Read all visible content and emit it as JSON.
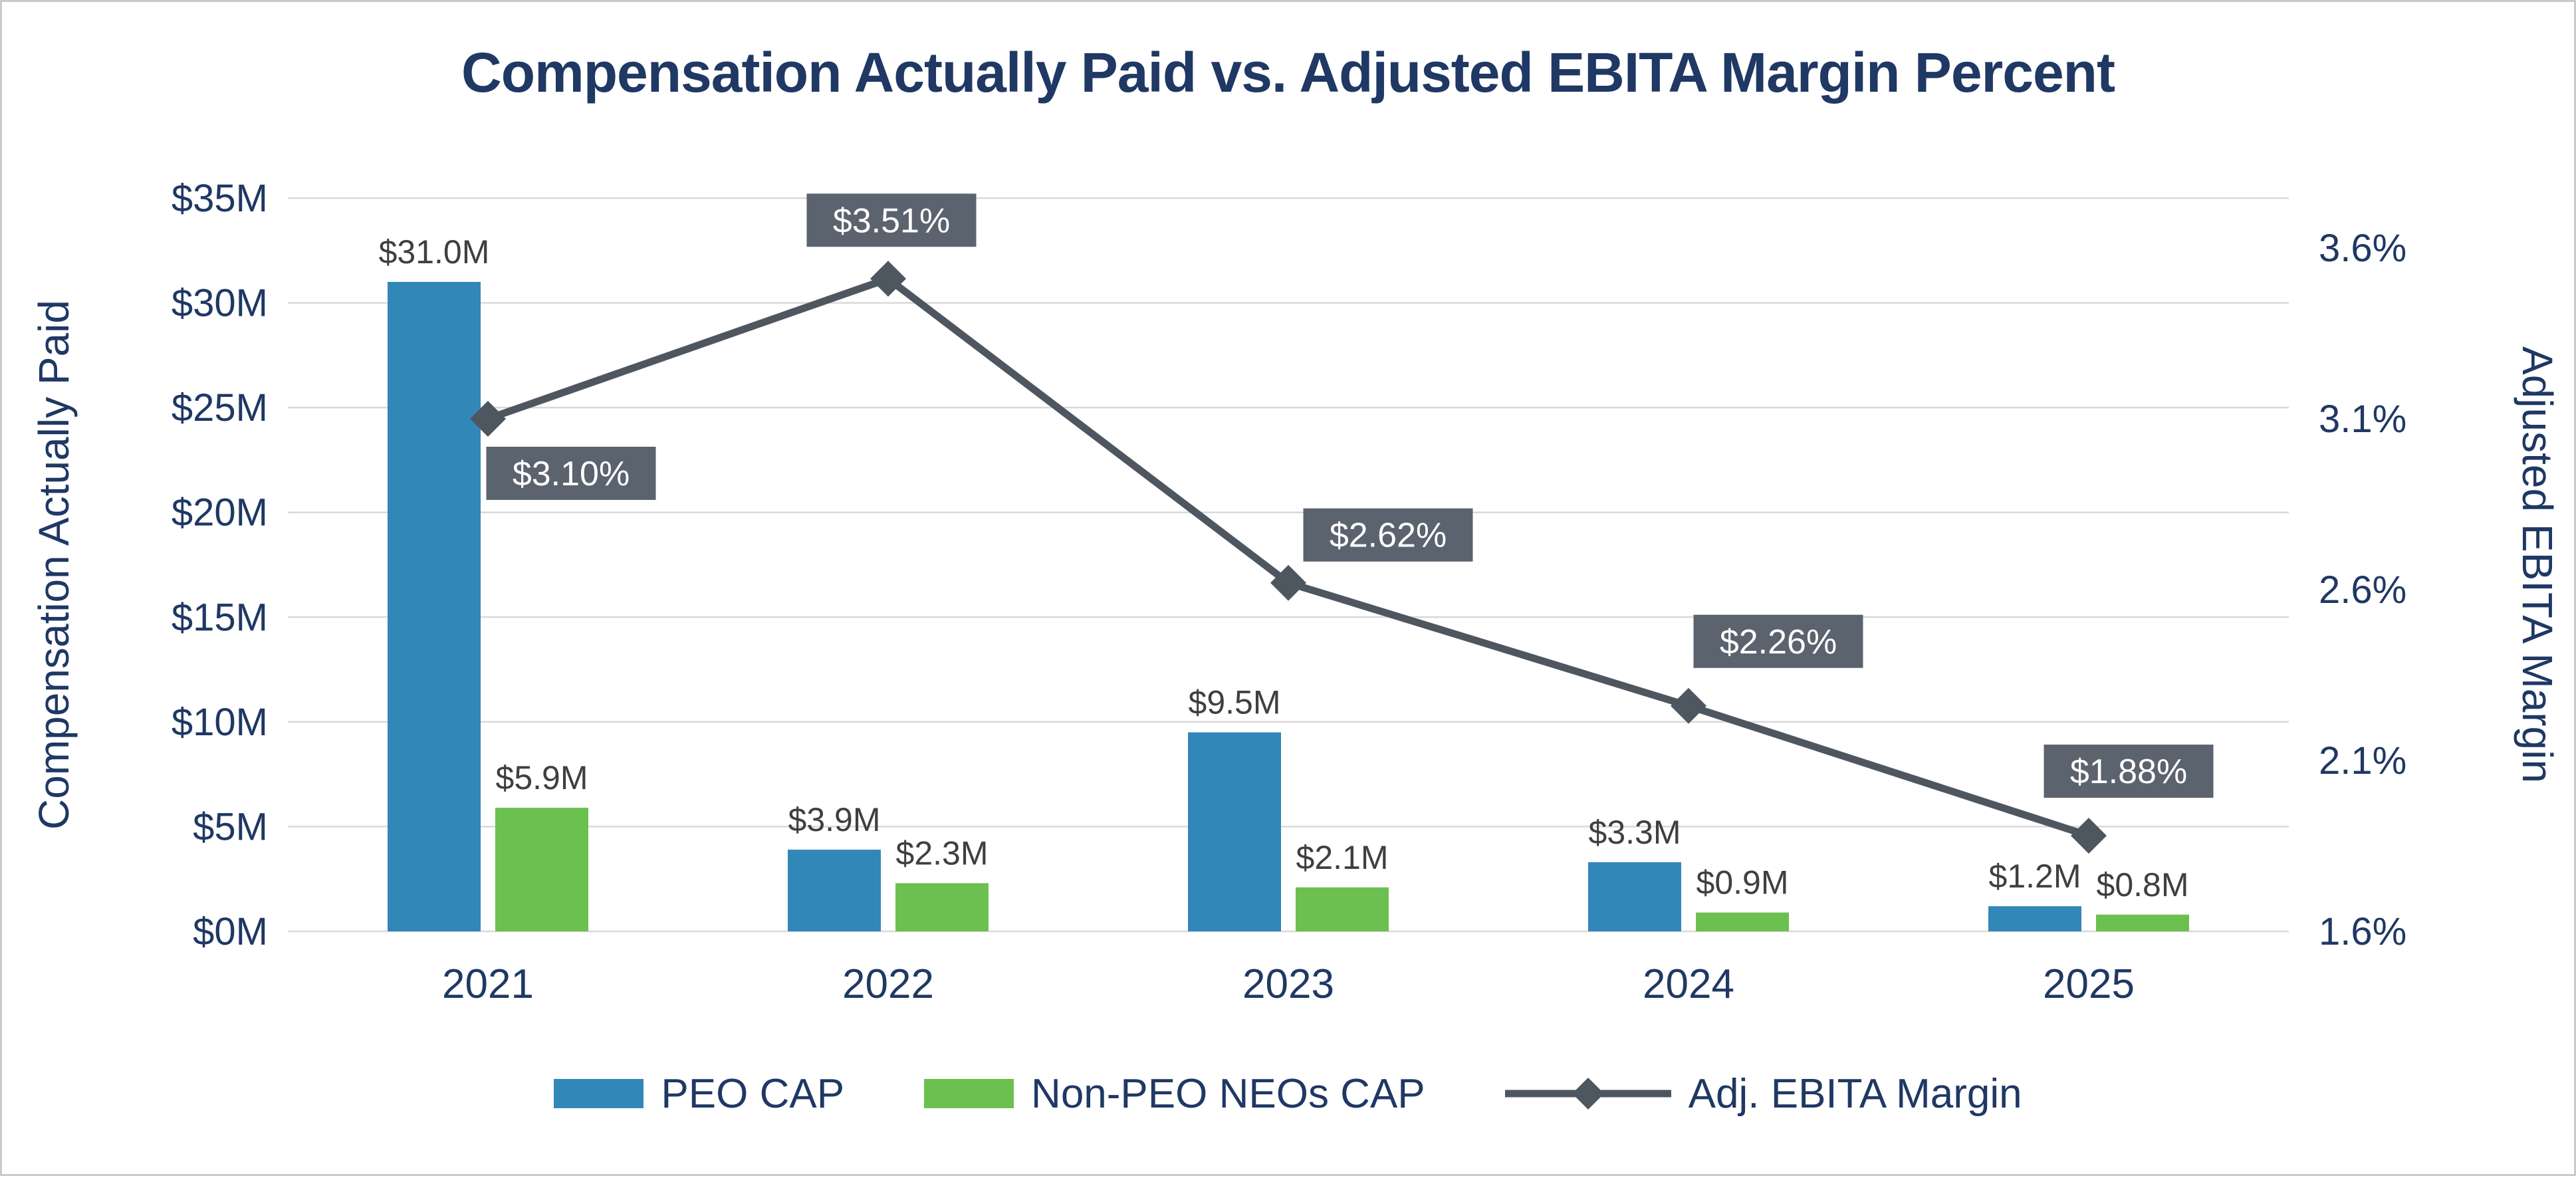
{
  "chart_data": {
    "type": "bar",
    "subtype": "grouped-bar-with-line-combo",
    "title": "Compensation Actually Paid vs. Adjusted EBITA Margin Percent",
    "categories": [
      "2021",
      "2022",
      "2023",
      "2024",
      "2025"
    ],
    "series": [
      {
        "name": "PEO CAP",
        "type": "bar",
        "axis": "left",
        "color": "#3287B9",
        "values": [
          31.0,
          3.9,
          9.5,
          3.3,
          1.2
        ],
        "labels": [
          "$31.0M",
          "$3.9M",
          "$9.5M",
          "$3.3M",
          "$1.2M"
        ]
      },
      {
        "name": "Non-PEO NEOs CAP",
        "type": "bar",
        "axis": "left",
        "color": "#6CC04F",
        "values": [
          5.9,
          2.3,
          2.1,
          0.9,
          0.8
        ],
        "labels": [
          "$5.9M",
          "$2.3M",
          "$2.1M",
          "$0.9M",
          "$0.8M"
        ]
      },
      {
        "name": "Adj. EBITA Margin",
        "type": "line",
        "axis": "right",
        "color": "#4E565F",
        "marker": "diamond",
        "values": [
          3.1,
          3.51,
          2.62,
          2.26,
          1.88
        ],
        "labels": [
          "$3.10%",
          "$3.51%",
          "$2.62%",
          "$2.26%",
          "$1.88%"
        ]
      }
    ],
    "left_axis": {
      "title": "Compensation Actually Paid",
      "min": 0,
      "max": 35,
      "step": 5,
      "tick_labels": [
        "$0M",
        "$5M",
        "$10M",
        "$15M",
        "$20M",
        "$25M",
        "$30M",
        "$35M"
      ]
    },
    "right_axis": {
      "title": "Adjusted EBITA Margin",
      "min": 1.6,
      "max": 3.6,
      "step": 0.5,
      "tick_labels": [
        "1.6%",
        "2.1%",
        "2.6%",
        "3.1%",
        "3.6%"
      ]
    },
    "grid": true,
    "legend_position": "bottom",
    "colors": {
      "title_text": "#1F3864",
      "axis_text": "#1F3864",
      "bar_label_text": "#3F3F3F",
      "gridline": "#D9D9D9",
      "line_label_box": "#5A636E",
      "line_label_text": "#FFFFFF",
      "frame_border": "#C9C9C9"
    }
  }
}
